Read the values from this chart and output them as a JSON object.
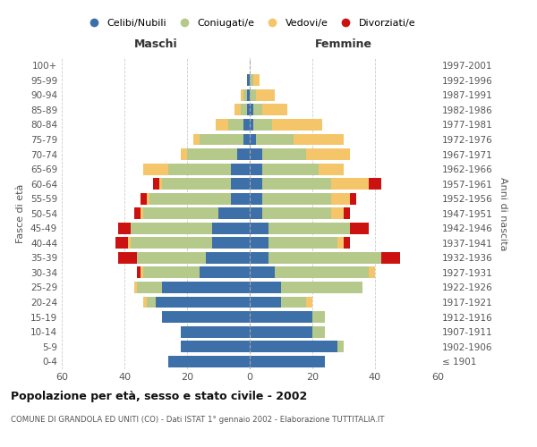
{
  "age_groups": [
    "100+",
    "95-99",
    "90-94",
    "85-89",
    "80-84",
    "75-79",
    "70-74",
    "65-69",
    "60-64",
    "55-59",
    "50-54",
    "45-49",
    "40-44",
    "35-39",
    "30-34",
    "25-29",
    "20-24",
    "15-19",
    "10-14",
    "5-9",
    "0-4"
  ],
  "birth_years": [
    "≤ 1901",
    "1902-1906",
    "1907-1911",
    "1912-1916",
    "1917-1921",
    "1922-1926",
    "1927-1931",
    "1932-1936",
    "1937-1941",
    "1942-1946",
    "1947-1951",
    "1952-1956",
    "1957-1961",
    "1962-1966",
    "1967-1971",
    "1972-1976",
    "1977-1981",
    "1982-1986",
    "1987-1991",
    "1992-1996",
    "1997-2001"
  ],
  "maschi": {
    "celibi": [
      0,
      1,
      1,
      1,
      2,
      2,
      4,
      6,
      6,
      6,
      10,
      12,
      12,
      14,
      16,
      28,
      30,
      28,
      22,
      22,
      26
    ],
    "coniugati": [
      0,
      0,
      1,
      2,
      5,
      14,
      16,
      20,
      22,
      26,
      24,
      26,
      26,
      22,
      18,
      8,
      3,
      0,
      0,
      0,
      0
    ],
    "vedovi": [
      0,
      0,
      1,
      2,
      4,
      2,
      2,
      8,
      1,
      1,
      1,
      0,
      1,
      0,
      1,
      1,
      1,
      0,
      0,
      0,
      0
    ],
    "divorziati": [
      0,
      0,
      0,
      0,
      0,
      0,
      0,
      0,
      2,
      2,
      2,
      4,
      4,
      6,
      1,
      0,
      0,
      0,
      0,
      0,
      0
    ]
  },
  "femmine": {
    "nubili": [
      0,
      0,
      0,
      1,
      1,
      2,
      4,
      4,
      4,
      4,
      4,
      6,
      6,
      6,
      8,
      10,
      10,
      20,
      20,
      28,
      24
    ],
    "coniugate": [
      0,
      1,
      2,
      3,
      6,
      12,
      14,
      18,
      22,
      22,
      22,
      26,
      22,
      36,
      30,
      26,
      8,
      4,
      4,
      2,
      0
    ],
    "vedove": [
      0,
      2,
      6,
      8,
      16,
      16,
      14,
      8,
      12,
      6,
      4,
      0,
      2,
      0,
      2,
      0,
      2,
      0,
      0,
      0,
      0
    ],
    "divorziate": [
      0,
      0,
      0,
      0,
      0,
      0,
      0,
      0,
      4,
      2,
      2,
      6,
      2,
      6,
      0,
      0,
      0,
      0,
      0,
      0,
      0
    ]
  },
  "colors": {
    "celibi": "#3d6fa8",
    "coniugati": "#b5c98a",
    "vedovi": "#f5c56a",
    "divorziati": "#cc1111"
  },
  "xlim": 60,
  "title": "Popolazione per età, sesso e stato civile - 2002",
  "subtitle": "COMUNE DI GRANDOLA ED UNITI (CO) - Dati ISTAT 1° gennaio 2002 - Elaborazione TUTTITALIA.IT",
  "legend_labels": [
    "Celibi/Nubili",
    "Coniugati/e",
    "Vedovi/e",
    "Divorziati/e"
  ],
  "header_left": "Maschi",
  "header_right": "Femmine",
  "ylabel_left": "Fasce di età",
  "ylabel_right": "Anni di nascita",
  "bg_color": "#ffffff",
  "grid_color": "#cccccc"
}
